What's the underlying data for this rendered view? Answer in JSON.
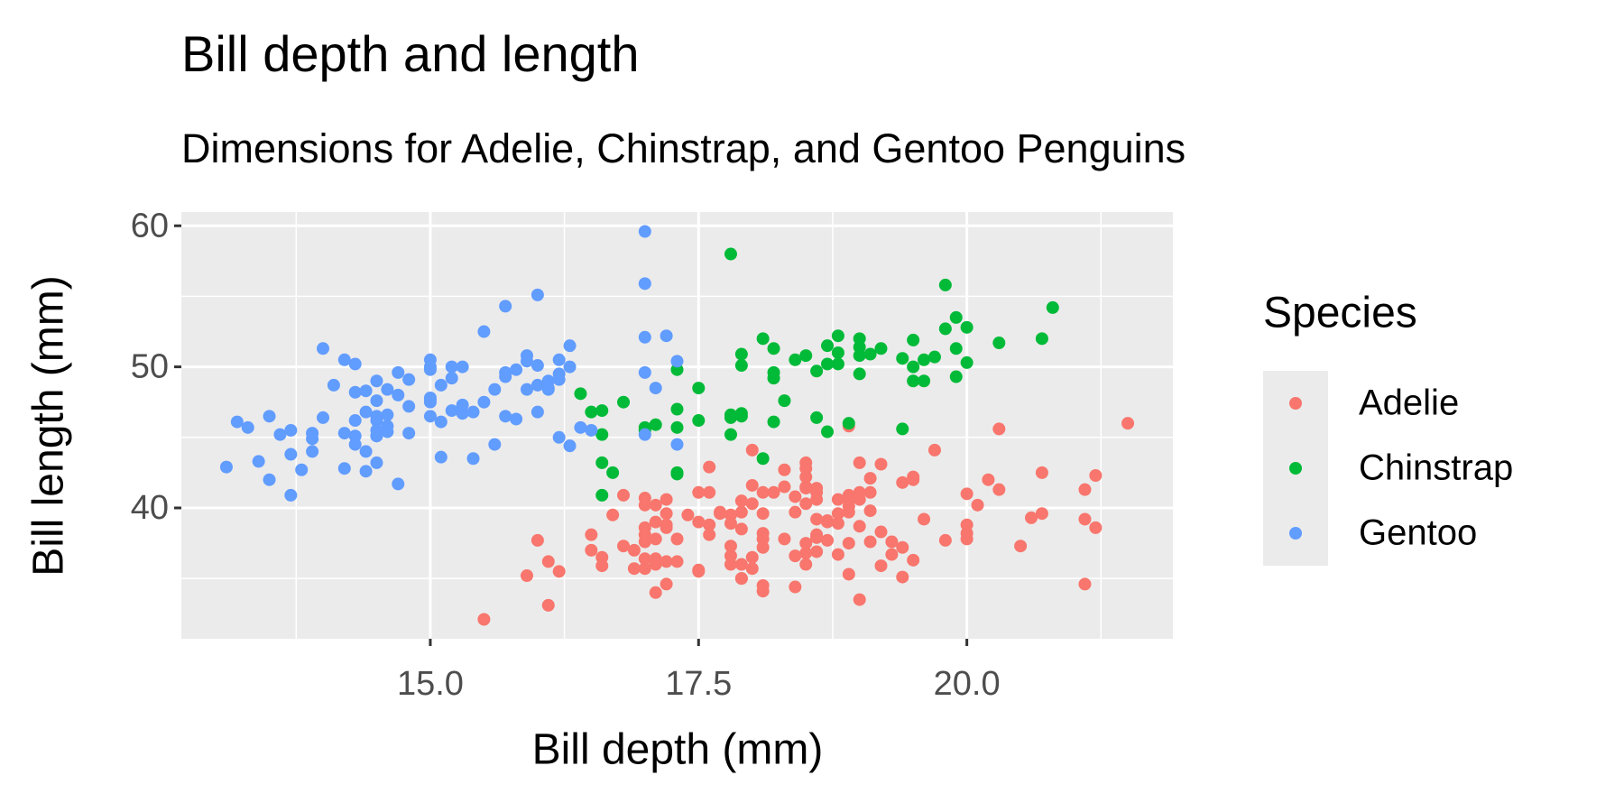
{
  "chart_data": {
    "type": "scatter",
    "title": "Bill depth and length",
    "subtitle": "Dimensions for Adelie, Chinstrap, and Gentoo Penguins",
    "x_label": "Bill depth (mm)",
    "y_label": "Bill length (mm)",
    "legend_title": "Species",
    "legend": "right",
    "grid": true,
    "xlim": [
      12.68,
      21.92
    ],
    "ylim": [
      30.725,
      60.975
    ],
    "xticks": [
      {
        "value": 15,
        "label": "15.0"
      },
      {
        "value": 17.5,
        "label": "17.5"
      },
      {
        "value": 20,
        "label": "20.0"
      }
    ],
    "yticks": [
      40,
      50,
      60
    ],
    "x_minor_grid": [
      13.75,
      16.25,
      18.75,
      21.25
    ],
    "y_minor_grid": [
      35,
      45,
      55
    ],
    "series": [
      {
        "name": "Adelie",
        "color": "#F8766D",
        "x": [
          18.7,
          17.4,
          18.0,
          19.3,
          20.6,
          17.8,
          19.6,
          18.1,
          20.2,
          17.1,
          17.3,
          17.6,
          21.2,
          21.1,
          17.8,
          19.0,
          20.7,
          18.4,
          21.5,
          18.3,
          18.7,
          19.2,
          18.1,
          17.2,
          18.9,
          18.6,
          17.9,
          18.6,
          18.9,
          16.7,
          18.1,
          17.8,
          18.9,
          17.0,
          21.1,
          20.0,
          18.5,
          19.3,
          19.1,
          18.0,
          18.4,
          18.5,
          19.7,
          16.9,
          18.8,
          19.0,
          18.9,
          17.9,
          21.2,
          17.7,
          18.9,
          17.9,
          19.5,
          18.1,
          18.6,
          17.5,
          18.8,
          16.6,
          19.1,
          16.9,
          21.1,
          17.0,
          18.2,
          17.1,
          18.0,
          16.2,
          19.1,
          16.6,
          19.4,
          19.0,
          18.4,
          17.2,
          18.9,
          17.5,
          18.5,
          16.8,
          19.4,
          16.1,
          19.1,
          17.2,
          17.6,
          18.8,
          19.4,
          17.8,
          20.3,
          19.5,
          18.6,
          19.2,
          18.8,
          18.0,
          18.1,
          17.1,
          18.1,
          17.3,
          18.9,
          18.6,
          18.5,
          16.1,
          18.5,
          17.9,
          20.0,
          16.0,
          20.0,
          18.6,
          18.9,
          17.2,
          20.0,
          17.0,
          19.0,
          16.5,
          20.3,
          17.7,
          19.5,
          20.7,
          18.3,
          17.0,
          20.5,
          17.0,
          18.6,
          17.2,
          19.8,
          17.0,
          18.5,
          15.9,
          19.0,
          17.6,
          18.3,
          17.1,
          18.0,
          17.9,
          19.2,
          18.5,
          18.5,
          17.6,
          17.5,
          17.5,
          20.1,
          16.5,
          17.9,
          17.1,
          17.2,
          15.5,
          17.0,
          16.8,
          18.7,
          18.6,
          18.4,
          17.8,
          18.1,
          17.1,
          18.5
        ],
        "values": [
          39.1,
          39.5,
          40.3,
          36.7,
          39.3,
          38.9,
          39.2,
          34.1,
          42.0,
          37.8,
          37.8,
          41.1,
          38.6,
          34.6,
          36.6,
          38.7,
          42.5,
          34.4,
          46.0,
          37.8,
          37.7,
          35.9,
          38.2,
          38.8,
          35.3,
          40.6,
          40.5,
          37.9,
          40.5,
          39.5,
          37.2,
          39.5,
          40.9,
          36.4,
          39.2,
          38.8,
          42.2,
          37.6,
          39.8,
          36.5,
          40.8,
          36.0,
          44.1,
          37.0,
          39.6,
          41.1,
          37.5,
          36.0,
          42.3,
          39.6,
          40.1,
          35.0,
          42.0,
          34.5,
          41.4,
          39.0,
          40.6,
          36.5,
          37.6,
          35.7,
          41.3,
          37.6,
          41.1,
          36.4,
          41.6,
          35.5,
          41.1,
          35.9,
          41.8,
          33.5,
          39.7,
          39.6,
          45.8,
          35.5,
          42.8,
          40.9,
          37.2,
          36.2,
          42.1,
          34.6,
          42.9,
          36.7,
          35.1,
          37.3,
          41.3,
          36.3,
          36.9,
          38.3,
          38.9,
          35.7,
          41.1,
          34.0,
          39.6,
          36.2,
          40.8,
          38.1,
          40.3,
          33.1,
          43.2,
          35.0,
          41.0,
          37.7,
          37.8,
          37.9,
          39.7,
          38.6,
          38.2,
          38.1,
          43.2,
          38.1,
          45.6,
          39.7,
          42.2,
          39.6,
          42.7,
          38.6,
          37.3,
          35.7,
          41.1,
          36.2,
          37.7,
          40.2,
          41.4,
          35.2,
          40.6,
          38.8,
          41.5,
          39.0,
          44.1,
          38.5,
          43.1,
          36.8,
          37.5,
          38.1,
          41.1,
          35.6,
          40.2,
          37.0,
          39.7,
          40.2,
          40.6,
          32.1,
          40.7,
          37.3,
          39.0,
          39.2,
          36.6,
          36.0,
          37.8,
          36.0,
          41.5
        ]
      },
      {
        "name": "Chinstrap",
        "color": "#00BA38",
        "x": [
          17.9,
          19.5,
          19.2,
          18.7,
          19.8,
          17.8,
          18.2,
          18.2,
          18.9,
          19.9,
          17.8,
          20.3,
          17.3,
          18.1,
          17.1,
          19.6,
          20.0,
          17.8,
          18.6,
          18.2,
          17.3,
          17.5,
          16.6,
          19.4,
          17.9,
          19.0,
          18.4,
          19.0,
          17.8,
          20.0,
          16.6,
          20.8,
          16.7,
          18.8,
          18.6,
          16.8,
          18.3,
          20.7,
          16.6,
          19.9,
          19.5,
          17.5,
          19.1,
          17.0,
          17.9,
          18.5,
          17.9,
          19.6,
          18.7,
          17.3,
          16.4,
          19.0,
          17.3,
          19.7,
          17.3,
          18.8,
          16.6,
          19.9,
          18.8,
          19.4,
          19.5,
          16.5,
          17.0,
          19.8,
          18.1,
          18.2,
          19.0,
          18.7
        ],
        "values": [
          46.5,
          50.0,
          51.3,
          45.4,
          52.7,
          45.2,
          46.1,
          51.3,
          46.0,
          51.3,
          46.6,
          51.7,
          47.0,
          52.0,
          45.9,
          50.5,
          50.3,
          58.0,
          46.4,
          49.2,
          42.4,
          48.5,
          43.2,
          50.6,
          46.7,
          52.0,
          50.5,
          49.5,
          46.4,
          52.8,
          40.9,
          54.2,
          42.5,
          51.0,
          49.7,
          47.5,
          47.6,
          52.0,
          46.9,
          53.5,
          49.0,
          46.2,
          50.9,
          45.5,
          50.9,
          50.8,
          50.1,
          49.0,
          51.5,
          49.8,
          48.1,
          51.4,
          45.7,
          50.7,
          42.5,
          52.2,
          45.2,
          49.3,
          50.2,
          45.6,
          51.9,
          46.8,
          45.7,
          55.8,
          43.5,
          49.6,
          50.8,
          50.2
        ]
      },
      {
        "name": "Gentoo",
        "color": "#619CFF",
        "x": [
          13.2,
          16.3,
          14.1,
          15.2,
          14.5,
          13.5,
          14.6,
          15.3,
          13.4,
          15.4,
          13.7,
          16.1,
          13.7,
          14.6,
          14.6,
          15.7,
          13.5,
          15.2,
          14.5,
          15.1,
          14.3,
          14.5,
          14.5,
          15.8,
          13.1,
          15.1,
          14.3,
          15.0,
          14.3,
          15.3,
          15.3,
          14.2,
          14.5,
          17.0,
          14.8,
          16.1,
          14.4,
          16.3,
          14.4,
          16.0,
          13.8,
          14.7,
          14.2,
          17.0,
          14.2,
          15.1,
          14.5,
          16.2,
          13.9,
          17.0,
          14.6,
          17.1,
          14.3,
          16.0,
          15.7,
          16.2,
          13.7,
          16.5,
          14.5,
          17.3,
          13.9,
          14.3,
          16.4,
          15.7,
          16.0,
          17.0,
          17.0,
          17.2,
          15.5,
          15.0,
          14.0,
          16.3,
          17.3,
          16.2,
          15.8,
          15.9,
          15.6,
          14.8,
          14.7,
          13.6,
          15.0,
          16.0,
          15.5,
          15.6,
          13.9,
          15.7,
          14.8,
          15.2,
          15.9,
          13.3,
          14.4,
          16.1,
          14.5,
          15.4,
          15.0,
          15.0,
          15.0,
          14.4,
          16.2,
          14.7,
          14.0,
          15.0,
          15.9
        ],
        "values": [
          46.1,
          50.0,
          48.7,
          50.0,
          47.6,
          46.5,
          45.4,
          46.7,
          43.3,
          46.8,
          40.9,
          49.0,
          45.5,
          48.4,
          45.8,
          49.3,
          42.0,
          49.2,
          46.2,
          48.7,
          50.2,
          45.1,
          46.5,
          46.3,
          42.9,
          46.1,
          44.5,
          47.8,
          48.2,
          50.0,
          47.3,
          42.8,
          45.1,
          59.6,
          49.1,
          48.4,
          42.6,
          44.4,
          44.0,
          48.7,
          42.7,
          49.6,
          45.3,
          49.6,
          50.5,
          43.6,
          45.5,
          50.5,
          44.9,
          45.2,
          46.6,
          48.5,
          45.1,
          50.1,
          46.5,
          45.0,
          43.8,
          45.5,
          43.2,
          50.4,
          45.3,
          46.2,
          45.7,
          54.3,
          55.1,
          55.9,
          52.1,
          52.2,
          52.5,
          50.5,
          51.3,
          51.5,
          44.5,
          49.5,
          49.8,
          50.4,
          48.4,
          45.3,
          41.7,
          45.2,
          46.5,
          46.8,
          47.5,
          44.5,
          44.0,
          49.6,
          47.2,
          46.9,
          50.8,
          45.7,
          48.3,
          48.5,
          49.0,
          43.5,
          49.8,
          50.0,
          47.7,
          46.8,
          49.1,
          48.0,
          46.4,
          47.5,
          48.4
        ]
      }
    ]
  }
}
